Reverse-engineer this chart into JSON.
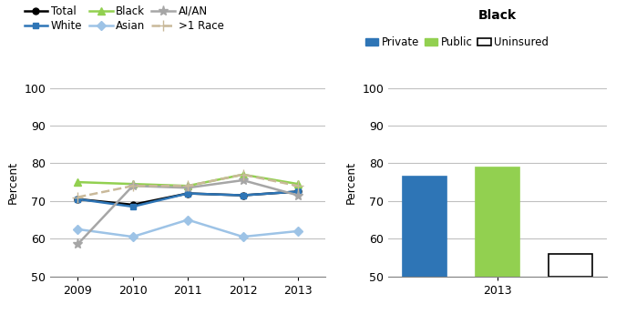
{
  "years": [
    2009,
    2010,
    2011,
    2012,
    2013
  ],
  "line_series": {
    "Total": {
      "values": [
        70.5,
        69.0,
        72.0,
        71.5,
        72.5
      ],
      "color": "#000000",
      "marker": "o",
      "linestyle": "-",
      "linewidth": 1.8,
      "markersize": 5
    },
    "White": {
      "values": [
        70.5,
        68.5,
        72.0,
        71.5,
        72.5
      ],
      "color": "#2E75B6",
      "marker": "s",
      "linestyle": "-",
      "linewidth": 1.8,
      "markersize": 5
    },
    "Black": {
      "values": [
        75.0,
        74.5,
        74.0,
        77.0,
        74.5
      ],
      "color": "#92D050",
      "marker": "^",
      "linestyle": "-",
      "linewidth": 1.8,
      "markersize": 6
    },
    "Asian": {
      "values": [
        62.5,
        60.5,
        65.0,
        60.5,
        62.0
      ],
      "color": "#9DC3E6",
      "marker": "D",
      "linestyle": "-",
      "linewidth": 1.8,
      "markersize": 5
    },
    "AI/AN": {
      "values": [
        58.5,
        74.0,
        73.5,
        75.5,
        71.5
      ],
      "color": "#A6A6A6",
      "marker": "*",
      "linestyle": "-",
      "linewidth": 1.8,
      "markersize": 8
    },
    ">1 Race": {
      "values": [
        71.0,
        74.0,
        74.0,
        77.0,
        74.0
      ],
      "color": "#C9B99A",
      "marker": "+",
      "linestyle": "--",
      "linewidth": 1.8,
      "markersize": 8
    }
  },
  "legend_order": [
    "Total",
    "White",
    "Black",
    "Asian",
    "AI/AN",
    ">1 Race"
  ],
  "line_ylim": [
    50,
    100
  ],
  "line_yticks": [
    50,
    60,
    70,
    80,
    90,
    100
  ],
  "bar_categories": [
    "Private",
    "Public",
    "Uninsured"
  ],
  "bar_values": [
    76.5,
    79.0,
    56.0
  ],
  "bar_colors": [
    "#2E75B6",
    "#92D050",
    "#FFFFFF"
  ],
  "bar_edgecolors": [
    "#2E75B6",
    "#92D050",
    "#000000"
  ],
  "bar_title": "Black",
  "bar_ylim": [
    50,
    100
  ],
  "bar_yticks": [
    50,
    60,
    70,
    80,
    90,
    100
  ],
  "bar_xtick": "2013",
  "ylabel": "Percent",
  "background_color": "#FFFFFF",
  "grid_color": "#C0C0C0"
}
